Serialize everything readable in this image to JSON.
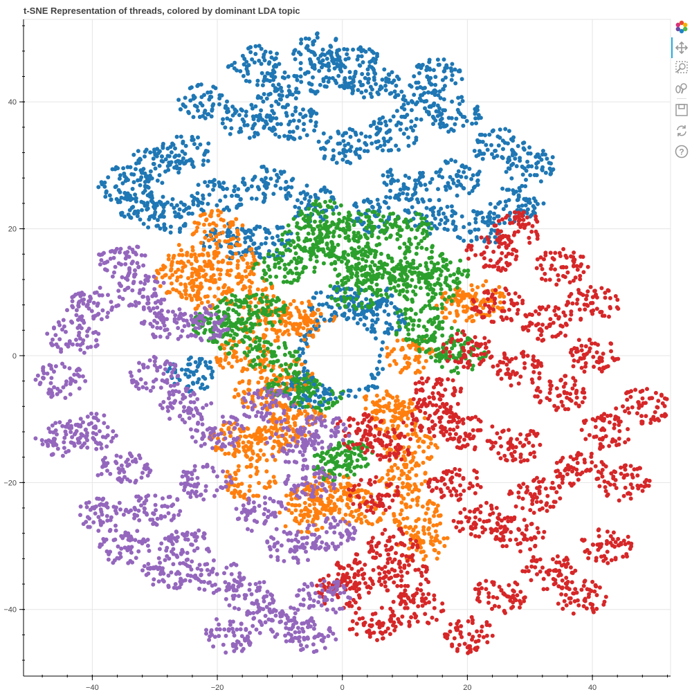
{
  "chart_data": {
    "type": "scatter",
    "title": "t-SNE Representation of threads, colored by dominant LDA topic",
    "xlabel": "",
    "ylabel": "",
    "xlim": [
      -51,
      52.5
    ],
    "ylim": [
      -50.5,
      53
    ],
    "grid": true,
    "x_ticks": [
      -40,
      -20,
      0,
      20,
      40
    ],
    "y_ticks": [
      -40,
      -20,
      0,
      20,
      40
    ],
    "x_tick_labels": [
      "−40",
      "−20",
      "0",
      "20",
      "40"
    ],
    "y_tick_labels": [
      "−40",
      "−20",
      "0",
      "20",
      "40"
    ],
    "series": [
      {
        "color": "#1f77b4",
        "values": [
          [
            -25,
            32
          ],
          [
            -30,
            30
          ],
          [
            -35,
            27
          ],
          [
            -15,
            37
          ],
          [
            -10,
            42
          ],
          [
            -3,
            44
          ],
          [
            5,
            43
          ],
          [
            12,
            40
          ],
          [
            18,
            38
          ],
          [
            25,
            33
          ],
          [
            30,
            30
          ],
          [
            18,
            28
          ],
          [
            10,
            27
          ],
          [
            5,
            22
          ],
          [
            -5,
            24
          ],
          [
            -12,
            27
          ],
          [
            -20,
            25
          ],
          [
            -28,
            22
          ],
          [
            -18,
            18
          ],
          [
            -8,
            37
          ],
          [
            0,
            33
          ],
          [
            -1,
            8
          ],
          [
            4,
            9
          ],
          [
            6,
            6
          ],
          [
            -3,
            2
          ],
          [
            3,
            -3
          ],
          [
            -5,
            -5
          ],
          [
            14,
            22
          ],
          [
            22,
            20
          ],
          [
            8,
            35
          ],
          [
            -22,
            40
          ],
          [
            -14,
            46
          ],
          [
            -4,
            48
          ],
          [
            2,
            46
          ],
          [
            15,
            44
          ],
          [
            -32,
            24
          ],
          [
            -12,
            18
          ],
          [
            28,
            24
          ],
          [
            -6,
            -6
          ],
          [
            -24,
            -3
          ]
        ]
      },
      {
        "color": "#ff7f0e",
        "values": [
          [
            -20,
            20
          ],
          [
            -17,
            15
          ],
          [
            -15,
            10
          ],
          [
            -12,
            5
          ],
          [
            -16,
            0
          ],
          [
            -13,
            -6
          ],
          [
            -17,
            -13
          ],
          [
            -9,
            -3
          ],
          [
            -7,
            6
          ],
          [
            -4,
            4
          ],
          [
            -7,
            -10
          ],
          [
            -10,
            -12
          ],
          [
            -5,
            -23
          ],
          [
            -2,
            -21
          ],
          [
            -6,
            -25
          ],
          [
            9,
            -10
          ],
          [
            11,
            -15
          ],
          [
            10,
            -20
          ],
          [
            12,
            -25
          ],
          [
            13,
            -30
          ],
          [
            7,
            -8
          ],
          [
            11,
            0
          ],
          [
            19,
            8
          ],
          [
            22,
            9
          ],
          [
            -24,
            15
          ],
          [
            -22,
            10
          ],
          [
            -26,
            12
          ],
          [
            -15,
            -20
          ],
          [
            -13,
            -14
          ],
          [
            3,
            -24
          ]
        ]
      },
      {
        "color": "#2ca02c",
        "values": [
          [
            -10,
            14
          ],
          [
            -5,
            16
          ],
          [
            0,
            18
          ],
          [
            5,
            14
          ],
          [
            2,
            10
          ],
          [
            8,
            12
          ],
          [
            10,
            20
          ],
          [
            -13,
            7
          ],
          [
            -17,
            3
          ],
          [
            -20,
            5
          ],
          [
            14,
            10
          ],
          [
            12,
            5
          ],
          [
            16,
            2
          ],
          [
            19,
            0
          ],
          [
            12,
            15
          ],
          [
            16,
            13
          ],
          [
            -3,
            22
          ],
          [
            -6,
            19
          ],
          [
            -8,
            -5
          ],
          [
            -4,
            -6
          ],
          [
            1,
            -16
          ],
          [
            -1,
            -17
          ],
          [
            4,
            20
          ],
          [
            -16,
            7
          ],
          [
            -11,
            0
          ],
          [
            3,
            14
          ]
        ]
      },
      {
        "color": "#d62728",
        "values": [
          [
            28,
            20
          ],
          [
            35,
            14
          ],
          [
            40,
            8
          ],
          [
            33,
            5
          ],
          [
            40,
            0
          ],
          [
            28,
            -2
          ],
          [
            35,
            -6
          ],
          [
            42,
            -12
          ],
          [
            38,
            -18
          ],
          [
            28,
            -14
          ],
          [
            20,
            -12
          ],
          [
            18,
            -20
          ],
          [
            22,
            -26
          ],
          [
            28,
            -28
          ],
          [
            33,
            -34
          ],
          [
            25,
            -38
          ],
          [
            20,
            -44
          ],
          [
            12,
            -40
          ],
          [
            5,
            -42
          ],
          [
            3,
            -34
          ],
          [
            8,
            -30
          ],
          [
            5,
            -22
          ],
          [
            3,
            -12
          ],
          [
            7,
            -14
          ],
          [
            15,
            -6
          ],
          [
            20,
            1
          ],
          [
            25,
            8
          ],
          [
            45,
            -20
          ],
          [
            42,
            -30
          ],
          [
            38,
            -38
          ],
          [
            48,
            -8
          ],
          [
            24,
            16
          ],
          [
            14,
            -10
          ],
          [
            0,
            -37
          ],
          [
            31,
            -22
          ],
          [
            10,
            -35
          ]
        ]
      },
      {
        "color": "#9467bd",
        "values": [
          [
            -35,
            15
          ],
          [
            -40,
            8
          ],
          [
            -43,
            3
          ],
          [
            -45,
            -4
          ],
          [
            -40,
            -12
          ],
          [
            -35,
            -18
          ],
          [
            -30,
            -24
          ],
          [
            -25,
            -30
          ],
          [
            -20,
            -35
          ],
          [
            -15,
            -38
          ],
          [
            -10,
            -42
          ],
          [
            -5,
            -44
          ],
          [
            -3,
            -38
          ],
          [
            -8,
            -30
          ],
          [
            -13,
            -25
          ],
          [
            -5,
            -20
          ],
          [
            -3,
            -12
          ],
          [
            -8,
            -14
          ],
          [
            -12,
            -8
          ],
          [
            -20,
            -12
          ],
          [
            -25,
            -8
          ],
          [
            -30,
            -3
          ],
          [
            -28,
            5
          ],
          [
            -22,
            5
          ],
          [
            -35,
            -30
          ],
          [
            -38,
            -25
          ],
          [
            -28,
            -34
          ],
          [
            -18,
            -44
          ],
          [
            -45,
            -13
          ],
          [
            -32,
            10
          ],
          [
            -22,
            -20
          ],
          [
            -2,
            -28
          ]
        ]
      }
    ]
  },
  "toolbar": {
    "tools": [
      "bokeh-logo-icon",
      "pan-icon",
      "box-zoom-icon",
      "wheel-zoom-icon",
      "save-icon",
      "reset-icon",
      "help-icon"
    ]
  }
}
